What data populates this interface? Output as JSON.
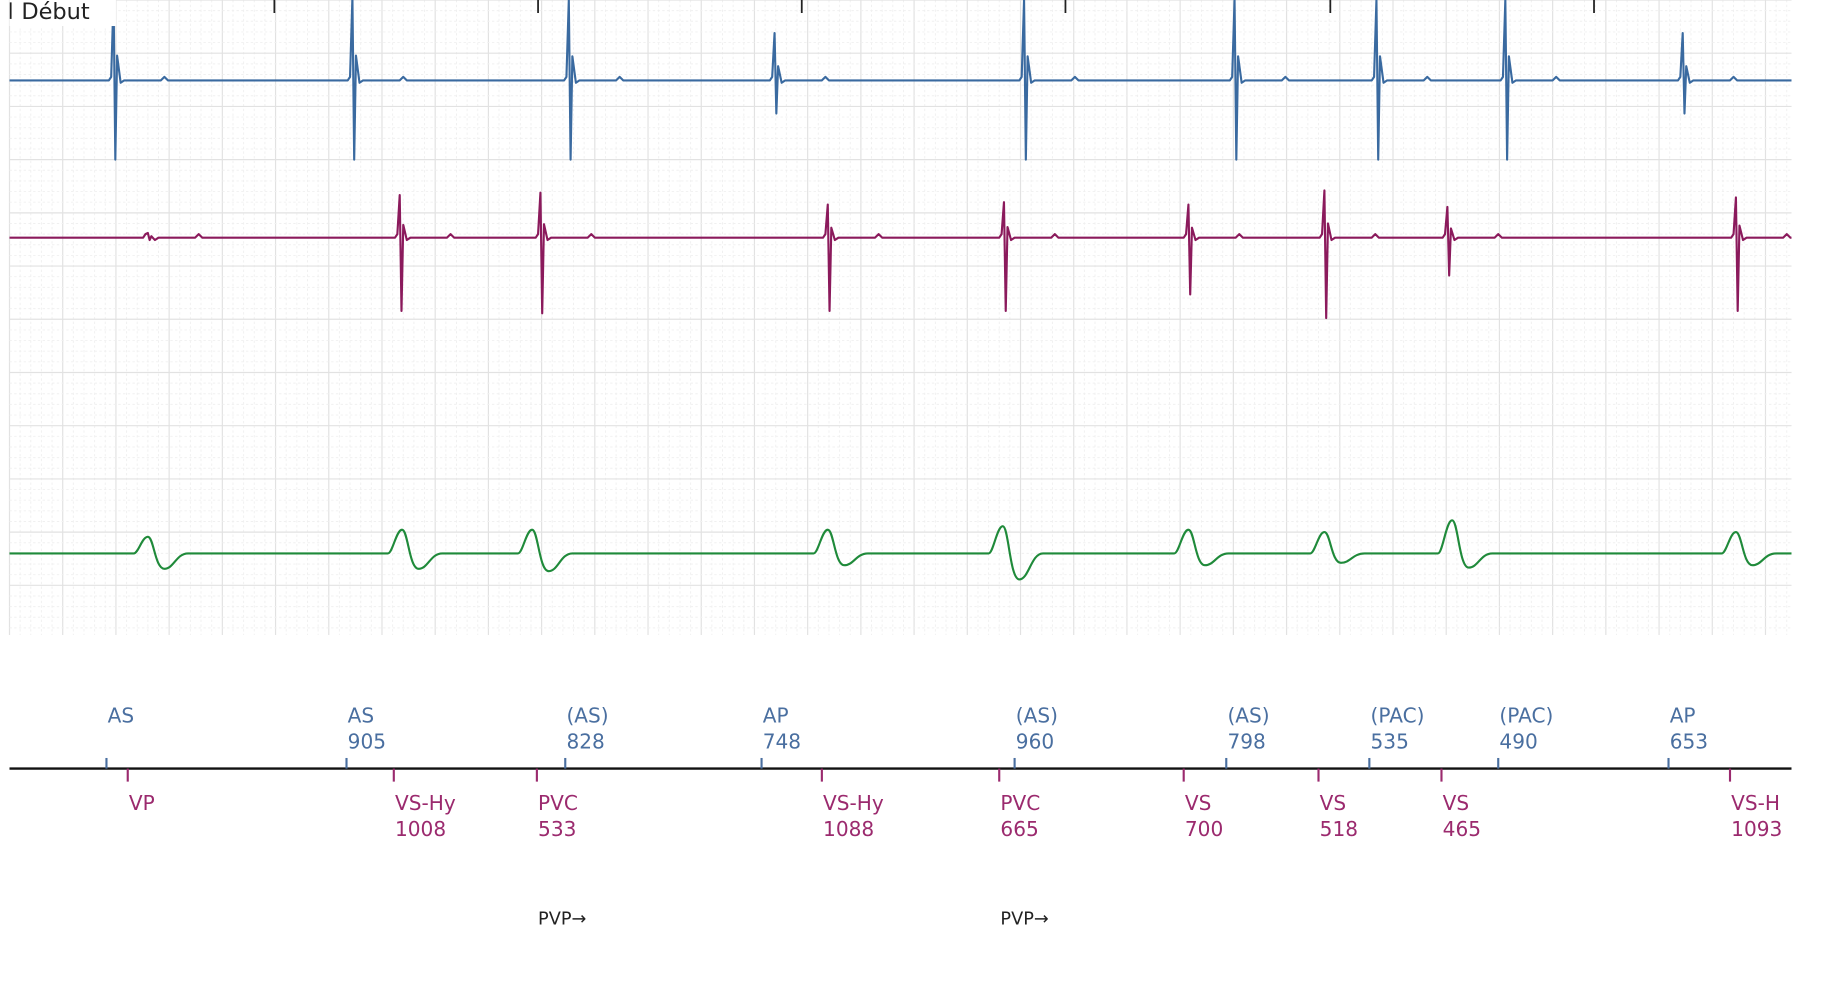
{
  "header": {
    "label": "Début"
  },
  "atrial_markers": [
    {
      "label": "AS"
    },
    {
      "label": "AS",
      "interval": 905
    },
    {
      "label": "(AS)",
      "interval": 828
    },
    {
      "label": "AP",
      "interval": 748
    },
    {
      "label": "(AS)",
      "interval": 960
    },
    {
      "label": "(AS)",
      "interval": 798
    },
    {
      "label": "(PAC)",
      "interval": 535
    },
    {
      "label": "(PAC)",
      "interval": 490
    },
    {
      "label": "AP",
      "interval": 653
    }
  ],
  "ventricular_markers": [
    {
      "label": "VP"
    },
    {
      "label": "VS-Hy",
      "interval": 1008
    },
    {
      "label": "PVC",
      "interval": 533
    },
    {
      "label": "VS-Hy",
      "interval": 1088
    },
    {
      "label": "PVC",
      "interval": 665
    },
    {
      "label": "VS",
      "interval": 700
    },
    {
      "label": "VS",
      "interval": 518
    },
    {
      "label": "VS",
      "interval": 465
    },
    {
      "label": "VS-H",
      "interval": 1093
    }
  ],
  "annotations": [
    {
      "label": "PVP→"
    },
    {
      "label": "PVP→"
    }
  ]
}
